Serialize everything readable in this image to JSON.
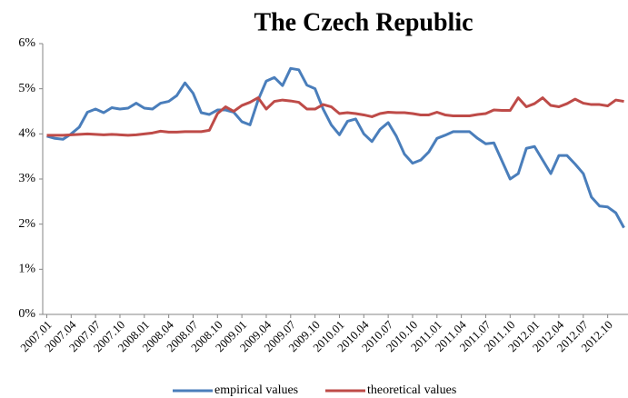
{
  "chart_data": {
    "type": "line",
    "title": "The Czech Republic",
    "categories": [
      "2007.01",
      null,
      null,
      "2007.04",
      null,
      null,
      "2007.07",
      null,
      null,
      "2007.10",
      null,
      null,
      "2008.01",
      null,
      null,
      "2008.04",
      null,
      null,
      "2008.07",
      null,
      null,
      "2008.10",
      null,
      null,
      "2009.01",
      null,
      null,
      "2009.04",
      null,
      null,
      "2009.07",
      null,
      null,
      "2009.10",
      null,
      null,
      "2010.01",
      null,
      null,
      "2010.04",
      null,
      null,
      "2010.07",
      null,
      null,
      "2010.10",
      null,
      null,
      "2011.01",
      null,
      null,
      "2011.04",
      null,
      null,
      "2011.07",
      null,
      null,
      "2011.10",
      null,
      null,
      "2012.01",
      null,
      null,
      "2012.04",
      null,
      null,
      "2012.07",
      null,
      null,
      "2012.10",
      null,
      null
    ],
    "series": [
      {
        "name": "empirical values",
        "color": "#4a7ebb",
        "values": [
          3.95,
          3.9,
          3.88,
          4.0,
          4.15,
          4.48,
          4.55,
          4.47,
          4.58,
          4.55,
          4.57,
          4.68,
          4.57,
          4.55,
          4.68,
          4.72,
          4.85,
          5.13,
          4.9,
          4.47,
          4.43,
          4.53,
          4.53,
          4.48,
          4.27,
          4.2,
          4.75,
          5.17,
          5.25,
          5.07,
          5.45,
          5.42,
          5.08,
          5.0,
          4.55,
          4.2,
          3.98,
          4.28,
          4.33,
          4.0,
          3.83,
          4.1,
          4.25,
          3.95,
          3.55,
          3.35,
          3.42,
          3.6,
          3.9,
          3.97,
          4.05,
          4.05,
          4.05,
          3.9,
          3.78,
          3.8,
          3.4,
          3.0,
          3.12,
          3.68,
          3.72,
          3.42,
          3.12,
          3.52,
          3.52,
          3.33,
          3.12,
          2.6,
          2.4,
          2.38,
          2.25,
          1.92
        ]
      },
      {
        "name": "theoretical values",
        "color": "#be4b48",
        "values": [
          3.97,
          3.97,
          3.97,
          3.98,
          3.99,
          4.0,
          3.99,
          3.98,
          3.99,
          3.98,
          3.97,
          3.98,
          4.0,
          4.02,
          4.06,
          4.04,
          4.04,
          4.05,
          4.05,
          4.05,
          4.08,
          4.45,
          4.6,
          4.5,
          4.63,
          4.7,
          4.8,
          4.55,
          4.72,
          4.75,
          4.73,
          4.7,
          4.55,
          4.55,
          4.65,
          4.6,
          4.45,
          4.47,
          4.45,
          4.42,
          4.38,
          4.45,
          4.48,
          4.47,
          4.47,
          4.45,
          4.42,
          4.42,
          4.48,
          4.42,
          4.4,
          4.4,
          4.4,
          4.43,
          4.45,
          4.53,
          4.52,
          4.52,
          4.8,
          4.6,
          4.67,
          4.8,
          4.63,
          4.6,
          4.67,
          4.77,
          4.68,
          4.65,
          4.65,
          4.62,
          4.75,
          4.72
        ]
      }
    ],
    "ylim": [
      0,
      6
    ],
    "yticks": [
      {
        "value": 0,
        "label": "0%"
      },
      {
        "value": 1,
        "label": "1%"
      },
      {
        "value": 2,
        "label": "2%"
      },
      {
        "value": 3,
        "label": "3%"
      },
      {
        "value": 4,
        "label": "4%"
      },
      {
        "value": 5,
        "label": "5%"
      },
      {
        "value": 6,
        "label": "6%"
      }
    ],
    "grid": false,
    "legend": "bottom"
  }
}
